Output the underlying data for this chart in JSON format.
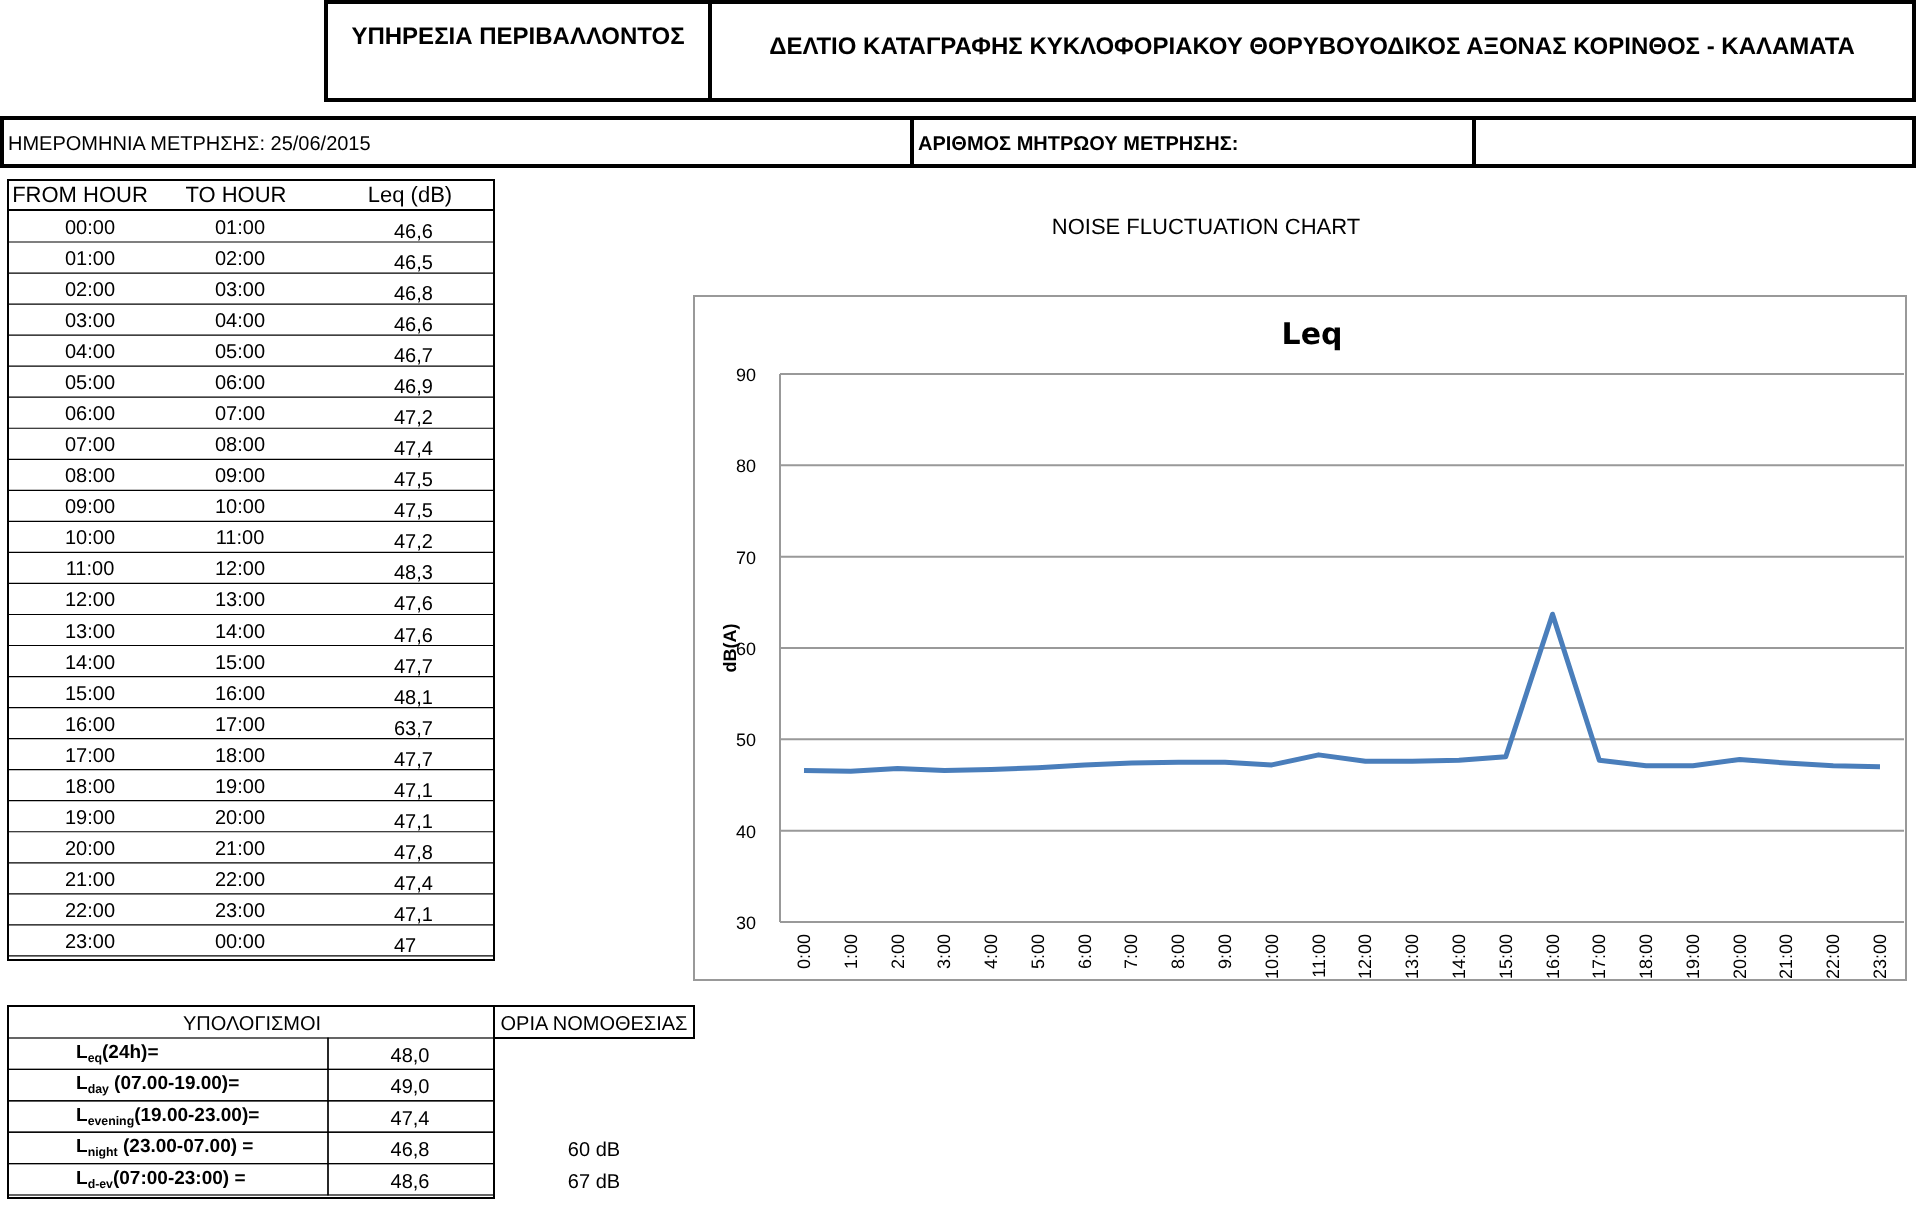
{
  "chart_data": {
    "type": "line",
    "title": "NOISE FLUCTUATION CHART",
    "subtitle": "Leq",
    "ylabel": "dB(A)",
    "categories": [
      "0:00",
      "1:00",
      "2:00",
      "3:00",
      "4:00",
      "5:00",
      "6:00",
      "7:00",
      "8:00",
      "9:00",
      "10:00",
      "11:00",
      "12:00",
      "13:00",
      "14:00",
      "15:00",
      "16:00",
      "17:00",
      "18:00",
      "19:00",
      "20:00",
      "21:00",
      "22:00",
      "23:00"
    ],
    "series": [
      {
        "color": "#4a7ebb",
        "values": [
          46.6,
          46.5,
          46.8,
          46.6,
          46.7,
          46.9,
          47.2,
          47.4,
          47.5,
          47.5,
          47.2,
          48.3,
          47.6,
          47.6,
          47.7,
          48.1,
          63.7,
          47.7,
          47.1,
          47.1,
          47.8,
          47.4,
          47.1,
          47
        ]
      }
    ],
    "ylim": [
      30,
      90
    ],
    "yticks": [
      30,
      40,
      50,
      60,
      70,
      80,
      90
    ],
    "grid": "y",
    "marker": "none",
    "line_style": "solid",
    "annotations": [
      "ΥΠΗΡΕΣΙΑ ΠΕΡΙΒΑΛΛΟΝΤΟΣ",
      "ΔΕΛΤΙΟ ΚΑΤΑΓΡΑΦΗΣ ΚΥΚΛΟΦΟΡΙΑΚΟΥ ΘΟΡΥΒΟΥΟΔΙΚΟΣ ΑΞΟΝΑΣ ΚΟΡΙΝΘΟΣ - ΚΑΛΑΜΑΤΑ",
      "ΗΜΕΡΟΜΗΝΙΑ ΜΕΤΡΗΣΗΣ: 25/06/2015",
      "ΑΡΙΘΜΟΣ ΜΗΤΡΩΟΥ ΜΕΤΡΗΣΗΣ:",
      "FROM HOUR",
      "TO HOUR",
      "Leq (dB)",
      "00:00",
      "01:00",
      "02:00",
      "03:00",
      "04:00",
      "05:00",
      "06:00",
      "07:00",
      "08:00",
      "09:00",
      "10:00",
      "11:00",
      "12:00",
      "13:00",
      "14:00",
      "15:00",
      "16:00",
      "17:00",
      "18:00",
      "19:00",
      "20:00",
      "21:00",
      "22:00",
      "23:00",
      "01:00",
      "02:00",
      "03:00",
      "04:00",
      "05:00",
      "06:00",
      "07:00",
      "08:00",
      "09:00",
      "10:00",
      "11:00",
      "12:00",
      "13:00",
      "14:00",
      "15:00",
      "16:00",
      "17:00",
      "18:00",
      "19:00",
      "20:00",
      "21:00",
      "22:00",
      "23:00",
      "00:00",
      "46,6",
      "46,5",
      "46,8",
      "46,6",
      "46,7",
      "46,9",
      "47,2",
      "47,4",
      "47,5",
      "47,5",
      "47,2",
      "48,3",
      "47,6",
      "47,6",
      "47,7",
      "48,1",
      "63,7",
      "47,7",
      "47,1",
      "47,1",
      "47,8",
      "47,4",
      "47,1",
      "47",
      "ΥΠΟΛΟΓΙΣΜΟΙ",
      "ΟΡΙΑ ΝΟΜΟΘΕΣΙΑΣ",
      "L$_{eq}$(24h)=",
      "48,0",
      "L$_{day}$ (07.00-19.00)=",
      "49,0",
      "L$_{evening}$(19.00-23.00)=",
      "47,4",
      "L$_{night}$ (23.00-07.00) =",
      "46,8",
      "L$_{d-ev}$(07:00-23:00) =",
      "48,6",
      "60 dB",
      "67 dB"
    ]
  }
}
